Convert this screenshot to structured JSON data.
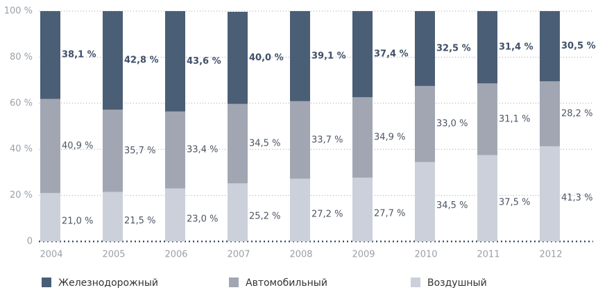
{
  "chart_data": {
    "type": "stacked_bar",
    "categories": [
      "2004",
      "2005",
      "2006",
      "2007",
      "2008",
      "2009",
      "2010",
      "2011",
      "2012"
    ],
    "series": [
      {
        "name": "Воздушный",
        "color": "#cbd0da",
        "values": [
          21.0,
          21.5,
          23.0,
          25.2,
          27.2,
          27.7,
          34.5,
          37.5,
          41.3
        ],
        "value_labels": [
          "21,0 %",
          "21,5 %",
          "23,0 %",
          "25,2 %",
          "27,2 %",
          "27,7 %",
          "34,5 %",
          "37,5 %",
          "41,3 %"
        ]
      },
      {
        "name": "Автомобильный",
        "color": "#a1a6b2",
        "values": [
          40.9,
          35.7,
          33.4,
          34.5,
          33.7,
          34.9,
          33.0,
          31.1,
          28.2
        ],
        "value_labels": [
          "40,9 %",
          "35,7 %",
          "33,4 %",
          "34,5 %",
          "33,7 %",
          "34,9 %",
          "33,0 %",
          "31,1 %",
          "28,2 %"
        ]
      },
      {
        "name": "Железнодорожный",
        "color": "#4a5e75",
        "values": [
          38.1,
          42.8,
          43.6,
          40.0,
          39.1,
          37.4,
          32.5,
          31.4,
          30.5
        ],
        "value_labels": [
          "38,1 %",
          "42,8 %",
          "43,6 %",
          "40,0 %",
          "39,1 %",
          "37,4 %",
          "32,5 %",
          "31,4 %",
          "30,5 %"
        ]
      }
    ],
    "ylim": [
      0,
      100
    ],
    "yticks": [
      0,
      {
        "value": 20,
        "label": "20 %"
      },
      {
        "value": 40,
        "label": "40 %"
      },
      {
        "value": 60,
        "label": "60 %"
      },
      {
        "value": 80,
        "label": "80 %"
      },
      {
        "value": 100,
        "label": "100 %"
      }
    ],
    "grid": true
  }
}
